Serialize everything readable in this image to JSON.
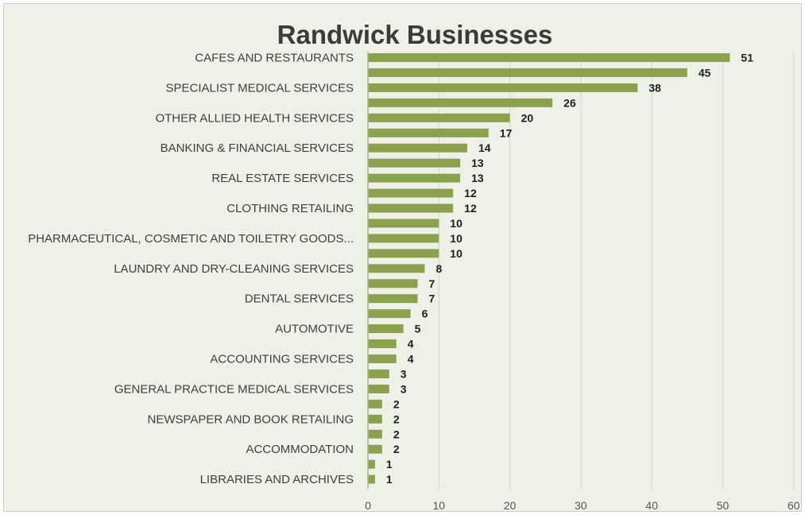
{
  "chart_data": {
    "type": "bar",
    "orientation": "horizontal",
    "title": "Randwick Businesses",
    "xlabel": "",
    "ylabel": "",
    "xlim": [
      0,
      60
    ],
    "xticks": [
      "0",
      "10",
      "20",
      "30",
      "40",
      "50",
      "60"
    ],
    "grid": true,
    "legend": "none",
    "bar_color": "#8aa150",
    "values": [
      51,
      45,
      38,
      26,
      20,
      17,
      14,
      13,
      13,
      12,
      12,
      10,
      10,
      10,
      8,
      7,
      7,
      6,
      5,
      4,
      4,
      3,
      3,
      2,
      2,
      2,
      2,
      1,
      1
    ],
    "category_labels": [
      "CAFES AND RESTAURANTS",
      "",
      "SPECIALIST MEDICAL SERVICES",
      "",
      "OTHER ALLIED HEALTH SERVICES",
      "",
      "BANKING & FINANCIAL SERVICES",
      "",
      "REAL ESTATE SERVICES",
      "",
      "CLOTHING RETAILING",
      "",
      "PHARMACEUTICAL, COSMETIC AND TOILETRY GOODS...",
      "",
      "LAUNDRY AND DRY-CLEANING SERVICES",
      "",
      "DENTAL SERVICES",
      "",
      "AUTOMOTIVE",
      "",
      "ACCOUNTING SERVICES",
      "",
      "GENERAL PRACTICE MEDICAL SERVICES",
      "",
      "NEWSPAPER AND BOOK RETAILING",
      "",
      "ACCOMMODATION",
      "",
      "LIBRARIES AND ARCHIVES"
    ]
  }
}
